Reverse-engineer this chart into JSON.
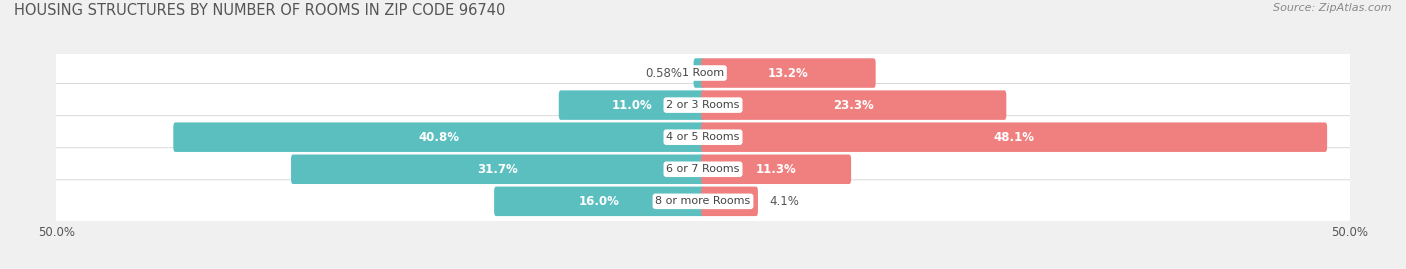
{
  "title": "HOUSING STRUCTURES BY NUMBER OF ROOMS IN ZIP CODE 96740",
  "source": "Source: ZipAtlas.com",
  "categories": [
    "1 Room",
    "2 or 3 Rooms",
    "4 or 5 Rooms",
    "6 or 7 Rooms",
    "8 or more Rooms"
  ],
  "owner_values": [
    0.58,
    11.0,
    40.8,
    31.7,
    16.0
  ],
  "renter_values": [
    13.2,
    23.3,
    48.1,
    11.3,
    4.1
  ],
  "owner_color": "#5BBFBF",
  "renter_color": "#F08080",
  "axis_limit": 50.0,
  "bar_height": 0.62,
  "background_color": "#f0f0f0",
  "bar_bg_color": "#e2e2e2",
  "row_bg_color": "#f8f8f8",
  "title_fontsize": 10.5,
  "label_fontsize": 8.5,
  "cat_fontsize": 8,
  "source_fontsize": 8,
  "legend_fontsize": 8.5
}
